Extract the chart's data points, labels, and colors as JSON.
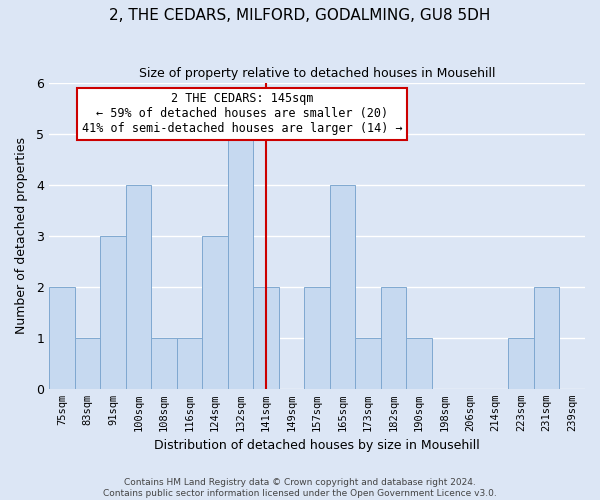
{
  "title": "2, THE CEDARS, MILFORD, GODALMING, GU8 5DH",
  "subtitle": "Size of property relative to detached houses in Mousehill",
  "xlabel": "Distribution of detached houses by size in Mousehill",
  "ylabel": "Number of detached properties",
  "bar_labels": [
    "75sqm",
    "83sqm",
    "91sqm",
    "100sqm",
    "108sqm",
    "116sqm",
    "124sqm",
    "132sqm",
    "141sqm",
    "149sqm",
    "157sqm",
    "165sqm",
    "173sqm",
    "182sqm",
    "190sqm",
    "198sqm",
    "206sqm",
    "214sqm",
    "223sqm",
    "231sqm",
    "239sqm"
  ],
  "bar_values": [
    2,
    1,
    3,
    4,
    1,
    1,
    3,
    5,
    2,
    0,
    2,
    4,
    1,
    2,
    1,
    0,
    0,
    0,
    1,
    2,
    0
  ],
  "bar_color": "#c6d9f0",
  "bar_edge_color": "#7fa8d0",
  "reference_line_index": 8,
  "reference_line_color": "#cc0000",
  "ylim": [
    0,
    6
  ],
  "yticks": [
    0,
    1,
    2,
    3,
    4,
    5,
    6
  ],
  "annotation_title": "2 THE CEDARS: 145sqm",
  "annotation_line1": "← 59% of detached houses are smaller (20)",
  "annotation_line2": "41% of semi-detached houses are larger (14) →",
  "annotation_box_color": "#ffffff",
  "annotation_box_edge_color": "#cc0000",
  "footer_line1": "Contains HM Land Registry data © Crown copyright and database right 2024.",
  "footer_line2": "Contains public sector information licensed under the Open Government Licence v3.0.",
  "background_color": "#dce6f5",
  "plot_background_color": "#dce6f5",
  "grid_color": "#ffffff"
}
